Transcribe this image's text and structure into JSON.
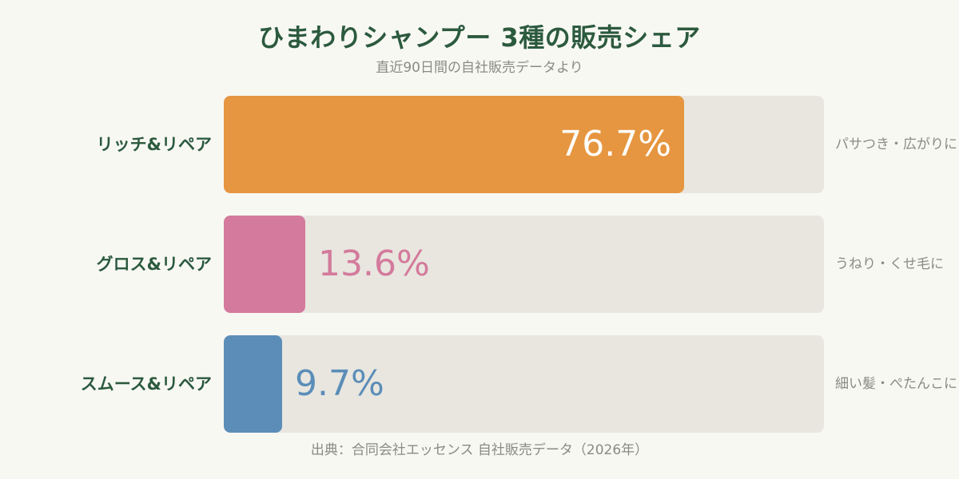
{
  "chart_data": {
    "type": "bar",
    "orientation": "horizontal",
    "title": "ひまわりシャンプー 3種の販売シェア",
    "subtitle": "直近90日間の自社販売データより",
    "categories": [
      "リッチ&リペア",
      "グロス&リペア",
      "スムース&リペア"
    ],
    "values": [
      76.7,
      13.6,
      9.7
    ],
    "value_labels": [
      "76.7%",
      "13.6%",
      "9.7%"
    ],
    "notes": [
      "パサつき・広がりに",
      "うねり・くせ毛に",
      "細い髪・ぺたんこに"
    ],
    "colors": [
      "#e69640",
      "#d47a9c",
      "#5b8db8"
    ],
    "track_color": "#e8e6df",
    "xlim": [
      0,
      100
    ],
    "grid": false,
    "source": "出典：合同会社エッセンス 自社販売データ（2026年）"
  }
}
